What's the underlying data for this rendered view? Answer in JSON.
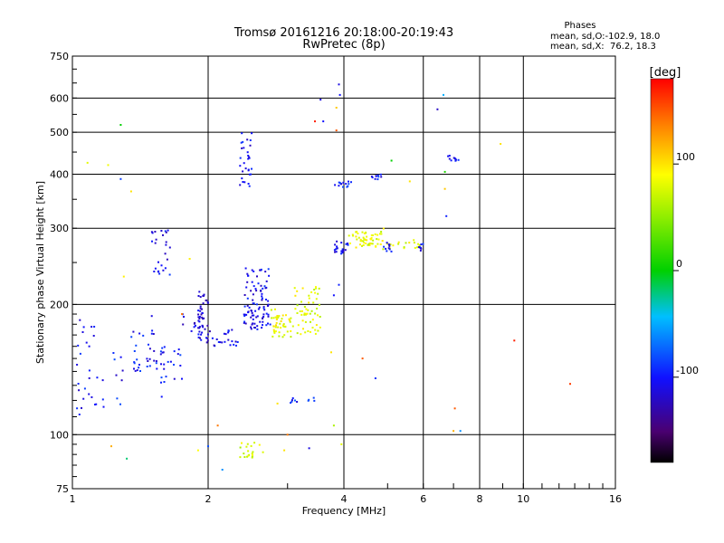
{
  "header": {
    "title_line1": "Tromsø 20161216 20:18:00-20:19:43",
    "title_line2": "RwPretec (8p)",
    "phases_title": "Phases",
    "phases_o": "mean, sd,O:-102.9, 18.0",
    "phases_x": "mean, sd,X:  76.2, 18.3"
  },
  "chart_data": {
    "type": "scatter",
    "xlabel": "Frequency [MHz]",
    "ylabel": "Stationary phase Virtual Height [km]",
    "xscale": "log",
    "yscale": "log",
    "xlim": [
      1,
      16
    ],
    "ylim": [
      75,
      750
    ],
    "x_ticks": [
      1,
      2,
      4,
      6,
      8,
      10,
      16
    ],
    "x_tick_labels": [
      "1",
      "2",
      "4",
      "6",
      "8",
      "10",
      "16"
    ],
    "y_ticks": [
      75,
      100,
      200,
      300,
      400,
      500,
      600,
      750
    ],
    "y_tick_labels": [
      "75",
      "100",
      "200",
      "300",
      "400",
      "500",
      "600",
      "750"
    ],
    "grid": true,
    "colorbar": {
      "label": "[deg]",
      "range": [
        -180,
        180
      ],
      "ticks": [
        100,
        0,
        -100
      ],
      "tick_labels": [
        "100",
        "0",
        "-100"
      ]
    },
    "clusters": [
      {
        "f": [
          1.0,
          1.12
        ],
        "h": [
          110,
          185
        ],
        "phase": -105,
        "n": 22
      },
      {
        "f": [
          1.12,
          1.3
        ],
        "h": [
          115,
          160
        ],
        "phase": -100,
        "n": 14
      },
      {
        "f": [
          1.35,
          1.55
        ],
        "h": [
          140,
          175
        ],
        "phase": -100,
        "n": 30
      },
      {
        "f": [
          1.5,
          1.65
        ],
        "h": [
          225,
          300
        ],
        "phase": -105,
        "n": 26
      },
      {
        "f": [
          1.55,
          1.75
        ],
        "h": [
          120,
          160
        ],
        "phase": -100,
        "n": 24
      },
      {
        "f": [
          1.75,
          1.95
        ],
        "h": [
          170,
          195
        ],
        "phase": -110,
        "n": 16
      },
      {
        "f": [
          1.9,
          2.0
        ],
        "h": [
          160,
          215
        ],
        "phase": -115,
        "n": 40
      },
      {
        "f": [
          2.0,
          2.35
        ],
        "h": [
          160,
          175
        ],
        "phase": -110,
        "n": 22
      },
      {
        "f": [
          2.35,
          2.5
        ],
        "h": [
          365,
          500
        ],
        "phase": -105,
        "n": 30
      },
      {
        "f": [
          2.4,
          2.75
        ],
        "h": [
          175,
          245
        ],
        "phase": -105,
        "n": 95
      },
      {
        "f": [
          2.75,
          3.1
        ],
        "h": [
          168,
          195
        ],
        "phase": 85,
        "n": 45
      },
      {
        "f": [
          3.1,
          3.55
        ],
        "h": [
          170,
          220
        ],
        "phase": 80,
        "n": 55
      },
      {
        "f": [
          2.95,
          3.45
        ],
        "h": [
          118,
          122
        ],
        "phase": -95,
        "n": 10
      },
      {
        "f": [
          2.35,
          2.65
        ],
        "h": [
          88,
          96
        ],
        "phase": 75,
        "n": 20
      },
      {
        "f": [
          3.8,
          4.1
        ],
        "h": [
          262,
          280
        ],
        "phase": -105,
        "n": 24
      },
      {
        "f": [
          3.8,
          4.15
        ],
        "h": [
          373,
          385
        ],
        "phase": -95,
        "n": 14
      },
      {
        "f": [
          4.1,
          4.9
        ],
        "h": [
          270,
          300
        ],
        "phase": 80,
        "n": 55
      },
      {
        "f": [
          4.5,
          4.85
        ],
        "h": [
          388,
          400
        ],
        "phase": -100,
        "n": 10
      },
      {
        "f": [
          4.85,
          5.9
        ],
        "h": [
          268,
          282
        ],
        "phase": 80,
        "n": 20
      },
      {
        "f": [
          4.9,
          5.1
        ],
        "h": [
          265,
          280
        ],
        "phase": -105,
        "n": 10
      },
      {
        "f": [
          5.7,
          6.0
        ],
        "h": [
          265,
          278
        ],
        "phase": -105,
        "n": 8
      },
      {
        "f": [
          6.7,
          7.2
        ],
        "h": [
          428,
          442
        ],
        "phase": -105,
        "n": 10
      }
    ],
    "points": [
      [
        1.08,
        425,
        80
      ],
      [
        1.2,
        420,
        85
      ],
      [
        1.28,
        520,
        0
      ],
      [
        1.28,
        390,
        -85
      ],
      [
        1.35,
        365,
        100
      ],
      [
        1.3,
        232,
        95
      ],
      [
        1.75,
        190,
        140
      ],
      [
        1.82,
        255,
        95
      ],
      [
        1.9,
        92,
        90
      ],
      [
        2.0,
        94,
        -80
      ],
      [
        2.15,
        83,
        -60
      ],
      [
        3.45,
        530,
        170
      ],
      [
        3.6,
        530,
        -100
      ],
      [
        3.55,
        595,
        -110
      ],
      [
        3.9,
        645,
        -110
      ],
      [
        3.92,
        610,
        -100
      ],
      [
        3.85,
        570,
        110
      ],
      [
        3.85,
        505,
        150
      ],
      [
        3.8,
        210,
        -100
      ],
      [
        3.9,
        222,
        -95
      ],
      [
        3.8,
        105,
        60
      ],
      [
        3.95,
        95,
        80
      ],
      [
        3.75,
        155,
        100
      ],
      [
        4.4,
        150,
        150
      ],
      [
        4.7,
        135,
        -90
      ],
      [
        5.1,
        430,
        0
      ],
      [
        5.6,
        385,
        100
      ],
      [
        6.45,
        565,
        -120
      ],
      [
        6.65,
        610,
        -50
      ],
      [
        6.7,
        405,
        10
      ],
      [
        6.7,
        370,
        110
      ],
      [
        6.75,
        320,
        -95
      ],
      [
        7.05,
        115,
        150
      ],
      [
        7.0,
        102,
        120
      ],
      [
        7.25,
        102,
        -60
      ],
      [
        8.9,
        470,
        100
      ],
      [
        9.55,
        165,
        170
      ],
      [
        12.7,
        131,
        160
      ],
      [
        3.0,
        100,
        140
      ],
      [
        2.95,
        92,
        100
      ],
      [
        3.35,
        93,
        -110
      ],
      [
        2.85,
        118,
        100
      ],
      [
        1.32,
        88,
        -20
      ],
      [
        1.22,
        94,
        120
      ],
      [
        1.5,
        188,
        -110
      ],
      [
        2.1,
        105,
        140
      ]
    ]
  }
}
